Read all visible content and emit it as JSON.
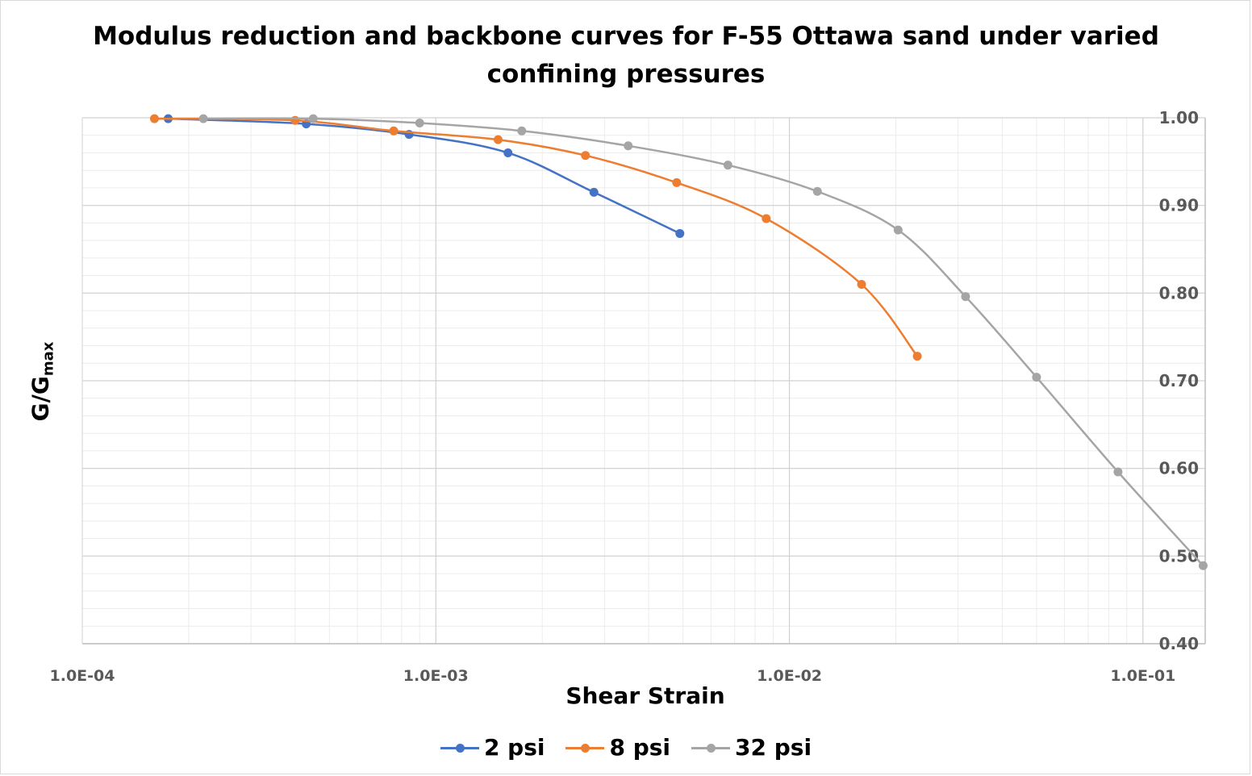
{
  "chart_data": {
    "type": "line",
    "title": "Modulus reduction and backbone curves for F-55 Ottawa sand under varied confining pressures",
    "xlabel": "Shear Strain",
    "ylabel_main": "G/G",
    "ylabel_sub": "max",
    "x_scale": "log",
    "xlim": [
      0.0001,
      0.15
    ],
    "ylim": [
      0.4,
      1.0
    ],
    "x_ticks": [
      0.0001,
      0.001,
      0.01,
      0.1
    ],
    "x_tick_labels": [
      "1.0E-04",
      "1.0E-03",
      "1.0E-02",
      "1.0E-01"
    ],
    "y_ticks": [
      0.4,
      0.5,
      0.6,
      0.7,
      0.8,
      0.9,
      1.0
    ],
    "y_tick_labels": [
      "0.40",
      "0.50",
      "0.60",
      "0.70",
      "0.80",
      "0.90",
      "1.00"
    ],
    "y_axis_position": "right",
    "grid": true,
    "legend_position": "bottom",
    "series": [
      {
        "name": "2 psi",
        "color": "#4472c4",
        "points": [
          [
            0.000175,
            0.999
          ],
          [
            0.00043,
            0.993
          ],
          [
            0.00084,
            0.981
          ],
          [
            0.0016,
            0.96
          ],
          [
            0.0028,
            0.915
          ],
          [
            0.0049,
            0.868
          ]
        ]
      },
      {
        "name": "8 psi",
        "color": "#ed7d31",
        "points": [
          [
            0.00016,
            0.999
          ],
          [
            0.0004,
            0.997
          ],
          [
            0.00076,
            0.985
          ],
          [
            0.0015,
            0.975
          ],
          [
            0.00265,
            0.957
          ],
          [
            0.0048,
            0.926
          ],
          [
            0.0086,
            0.885
          ],
          [
            0.016,
            0.81
          ],
          [
            0.023,
            0.728
          ]
        ]
      },
      {
        "name": "32 psi",
        "color": "#a5a5a5",
        "points": [
          [
            0.00022,
            0.999
          ],
          [
            0.00045,
            0.999
          ],
          [
            0.0009,
            0.994
          ],
          [
            0.00175,
            0.985
          ],
          [
            0.0035,
            0.968
          ],
          [
            0.0067,
            0.946
          ],
          [
            0.012,
            0.916
          ],
          [
            0.0203,
            0.872
          ],
          [
            0.0315,
            0.796
          ],
          [
            0.05,
            0.704
          ],
          [
            0.085,
            0.596
          ],
          [
            0.148,
            0.489
          ]
        ]
      }
    ]
  }
}
